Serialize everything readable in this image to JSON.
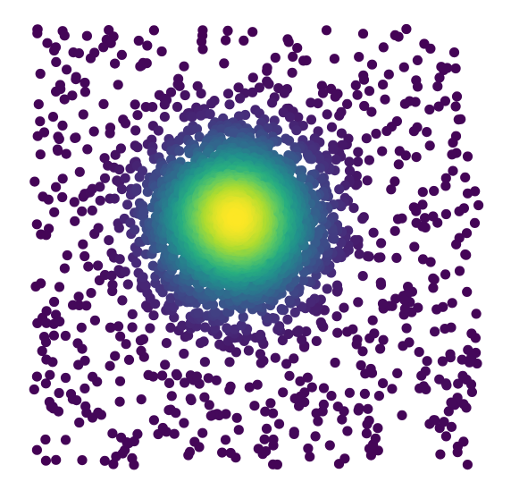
{
  "chart_data": {
    "type": "scatter",
    "title": "",
    "xlabel": "",
    "ylabel": "",
    "axes_visible": false,
    "grid": false,
    "legend": "none",
    "xlim": [
      0,
      1
    ],
    "ylim": [
      0,
      1
    ],
    "color_encoding": "point density",
    "colormap": "viridis",
    "colormap_stops": [
      "#440154",
      "#472d7b",
      "#3b528b",
      "#2c728e",
      "#21918c",
      "#28ae80",
      "#5ec962",
      "#addc30",
      "#fde725"
    ],
    "marker": "circle",
    "point_count_estimate": 3300,
    "uniform_background": {
      "count": 800,
      "x_range": [
        0,
        1
      ],
      "y_range": [
        0,
        1
      ]
    },
    "gaussian_cluster": {
      "count": 2500,
      "center": [
        0.455,
        0.56
      ],
      "sd": [
        0.1,
        0.1
      ]
    },
    "seed": 7
  }
}
